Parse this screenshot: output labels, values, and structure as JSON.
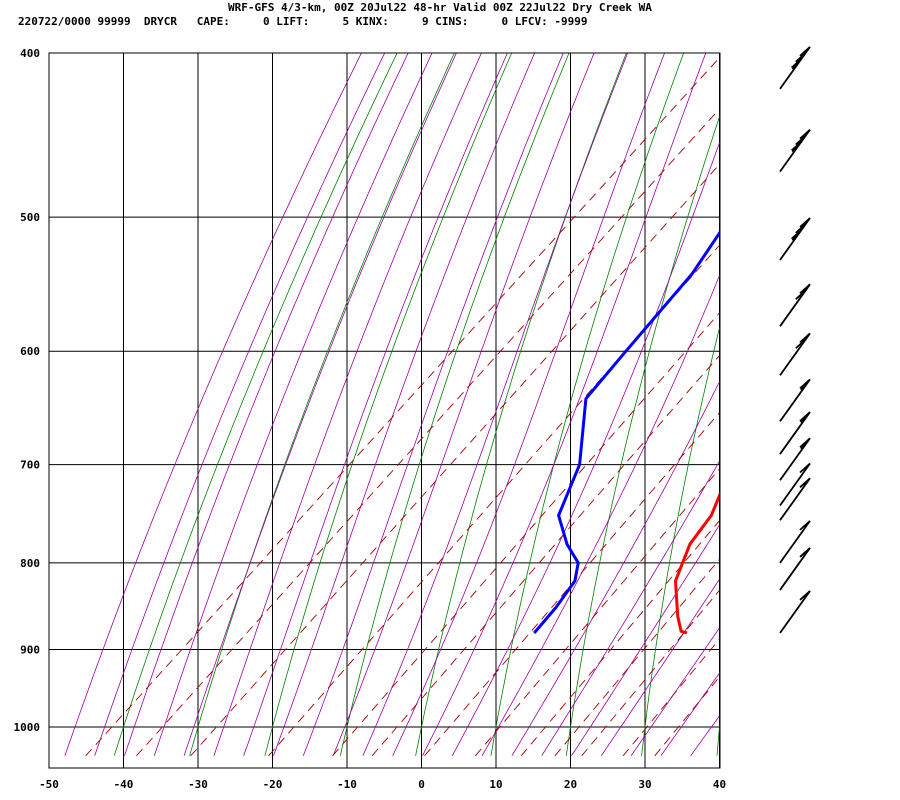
{
  "header": {
    "title": "WRF-GFS 4/3-km, 00Z 20Jul22 48-hr Valid 00Z 22Jul22 Dry Creek WA",
    "station_line": "220722/0000 99999  DRYCR   CAPE:     0 LIFT:     5 KINX:     9 CINS:     0 LFCV: -9999"
  },
  "colors": {
    "temperature": "#ff0000",
    "dewpoint": "#0000ff",
    "dry_adiabat": "#008000",
    "moist_adiabat": "#9b00a0",
    "mixing_ratio": "#a00000",
    "grid": "#000000"
  },
  "chart_data": {
    "type": "line",
    "subtype": "skew-T log-p sounding",
    "x_unit": "degC",
    "y_unit": "hPa",
    "xlim": [
      -50,
      40
    ],
    "ylim": [
      1040,
      400
    ],
    "x_ticks": [
      -50,
      -40,
      -30,
      -20,
      -10,
      0,
      10,
      20,
      30,
      40
    ],
    "y_ticks": [
      400,
      500,
      600,
      700,
      800,
      900,
      1000
    ],
    "series": [
      {
        "key": "temperature",
        "points": [
          {
            "p": 880,
            "t": 23.0
          },
          {
            "p": 878,
            "t": 22.0
          },
          {
            "p": 860,
            "t": 19.5
          },
          {
            "p": 820,
            "t": 14.5
          },
          {
            "p": 780,
            "t": 11.5
          },
          {
            "p": 750,
            "t": 10.5
          },
          {
            "p": 700,
            "t": 6.5
          },
          {
            "p": 650,
            "t": 2.0
          },
          {
            "p": 600,
            "t": -3.0
          },
          {
            "p": 550,
            "t": -8.5
          },
          {
            "p": 500,
            "t": -14.0
          },
          {
            "p": 470,
            "t": -17.5
          },
          {
            "p": 440,
            "t": -22.0
          },
          {
            "p": 420,
            "t": -24.5
          }
        ]
      },
      {
        "key": "dewpoint",
        "points": [
          {
            "p": 880,
            "t": 2.5
          },
          {
            "p": 850,
            "t": 2.0
          },
          {
            "p": 820,
            "t": 1.0
          },
          {
            "p": 800,
            "t": -1.0
          },
          {
            "p": 780,
            "t": -5.0
          },
          {
            "p": 750,
            "t": -10.0
          },
          {
            "p": 700,
            "t": -14.0
          },
          {
            "p": 640,
            "t": -22.0
          },
          {
            "p": 600,
            "t": -23.0
          },
          {
            "p": 540,
            "t": -24.5
          },
          {
            "p": 500,
            "t": -27.0
          },
          {
            "p": 470,
            "t": -28.5
          },
          {
            "p": 440,
            "t": -31.5
          },
          {
            "p": 420,
            "t": -34.5
          }
        ]
      }
    ],
    "wind_barbs": [
      {
        "p": 420,
        "speed_kt": 35
      },
      {
        "p": 470,
        "speed_kt": 35
      },
      {
        "p": 530,
        "speed_kt": 35
      },
      {
        "p": 580,
        "speed_kt": 20
      },
      {
        "p": 620,
        "speed_kt": 20
      },
      {
        "p": 660,
        "speed_kt": 15
      },
      {
        "p": 690,
        "speed_kt": 15
      },
      {
        "p": 715,
        "speed_kt": 15
      },
      {
        "p": 740,
        "speed_kt": 10
      },
      {
        "p": 755,
        "speed_kt": 10
      },
      {
        "p": 800,
        "speed_kt": 10
      },
      {
        "p": 830,
        "speed_kt": 10
      },
      {
        "p": 880,
        "speed_kt": 10
      }
    ]
  }
}
